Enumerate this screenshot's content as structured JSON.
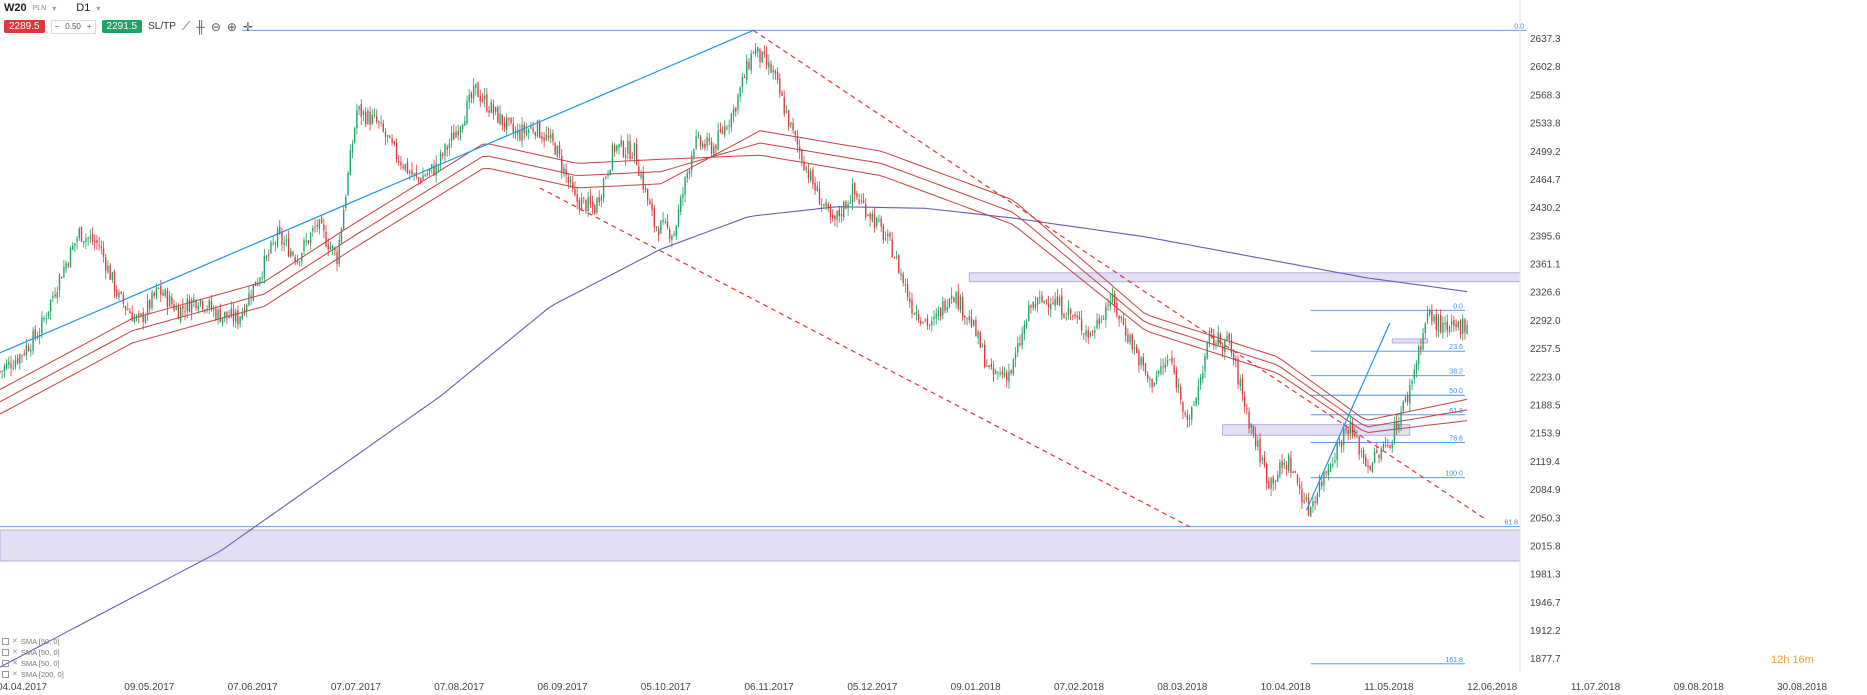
{
  "toolbar": {
    "symbol": "W20",
    "currency": "PLN",
    "timeframe": "D1",
    "sell_price": "2289.5",
    "lot": "0.50",
    "buy_price": "2291.5",
    "sltp_label": "SL/TP",
    "icons": [
      "line-chart-icon",
      "candles-icon",
      "zoom-out-icon",
      "zoom-in-icon",
      "crosshair-icon"
    ]
  },
  "legend": [
    "SMA [50, 0]",
    "SMA [50, 0]",
    "SMA [50, 0]",
    "SMA [200, 0]"
  ],
  "timer": {
    "hours": "12h",
    "minutes": "16m"
  },
  "colors": {
    "up": "#1aa466",
    "down": "#e0373d",
    "sma": "#c84040",
    "sma200": "#6a5cae",
    "trend": "#2196e8",
    "fib": "#3d8fe0",
    "zone": "#d6d0ee"
  },
  "chart_data": {
    "type": "candlestick",
    "timeframe": "D1",
    "xlabels": [
      "04.04.2017",
      "09.05.2017",
      "07.06.2017",
      "07.07.2017",
      "07.08.2017",
      "06.09.2017",
      "05.10.2017",
      "06.11.2017",
      "05.12.2017",
      "09.01.2018",
      "07.02.2018",
      "08.03.2018",
      "10.04.2018",
      "11.05.2018",
      "12.06.2018",
      "11.07.2018",
      "09.08.2018",
      "30.08.2018"
    ],
    "yticks": [
      "2637.3",
      "2602.8",
      "2568.3",
      "2533.8",
      "2499.2",
      "2464.7",
      "2430.2",
      "2395.6",
      "2361.1",
      "2326.6",
      "2292.0",
      "2257.5",
      "2223.0",
      "2188.5",
      "2153.9",
      "2119.4",
      "2084.9",
      "2050.3",
      "2015.8",
      "1981.3",
      "1946.7",
      "1912.2",
      "1877.7"
    ],
    "ylim": [
      1862,
      2668
    ],
    "close_path": [
      [
        0,
        2230
      ],
      [
        9,
        2250
      ],
      [
        18,
        2280
      ],
      [
        27,
        2345
      ],
      [
        36,
        2400
      ],
      [
        45,
        2385
      ],
      [
        54,
        2320
      ],
      [
        63,
        2290
      ],
      [
        72,
        2330
      ],
      [
        81,
        2305
      ],
      [
        90,
        2320
      ],
      [
        99,
        2300
      ],
      [
        108,
        2295
      ],
      [
        117,
        2345
      ],
      [
        126,
        2395
      ],
      [
        135,
        2370
      ],
      [
        144,
        2410
      ],
      [
        153,
        2370
      ],
      [
        162,
        2550
      ],
      [
        171,
        2535
      ],
      [
        180,
        2495
      ],
      [
        189,
        2465
      ],
      [
        198,
        2480
      ],
      [
        207,
        2525
      ],
      [
        216,
        2575
      ],
      [
        225,
        2545
      ],
      [
        234,
        2520
      ],
      [
        243,
        2530
      ],
      [
        252,
        2505
      ],
      [
        261,
        2440
      ],
      [
        270,
        2430
      ],
      [
        279,
        2505
      ],
      [
        288,
        2500
      ],
      [
        297,
        2410
      ],
      [
        306,
        2400
      ],
      [
        315,
        2510
      ],
      [
        324,
        2505
      ],
      [
        333,
        2550
      ],
      [
        342,
        2625
      ],
      [
        351,
        2595
      ],
      [
        360,
        2520
      ],
      [
        369,
        2460
      ],
      [
        378,
        2410
      ],
      [
        387,
        2450
      ],
      [
        396,
        2420
      ],
      [
        405,
        2380
      ],
      [
        414,
        2310
      ],
      [
        423,
        2285
      ],
      [
        432,
        2330
      ],
      [
        441,
        2290
      ],
      [
        450,
        2225
      ],
      [
        459,
        2230
      ],
      [
        468,
        2310
      ],
      [
        477,
        2320
      ],
      [
        486,
        2300
      ],
      [
        495,
        2275
      ],
      [
        504,
        2320
      ],
      [
        513,
        2270
      ],
      [
        522,
        2215
      ],
      [
        531,
        2245
      ],
      [
        540,
        2165
      ],
      [
        549,
        2270
      ],
      [
        558,
        2265
      ],
      [
        567,
        2170
      ],
      [
        576,
        2095
      ],
      [
        585,
        2120
      ],
      [
        594,
        2060
      ],
      [
        603,
        2115
      ],
      [
        612,
        2165
      ],
      [
        621,
        2115
      ],
      [
        630,
        2140
      ],
      [
        639,
        2200
      ],
      [
        648,
        2300
      ],
      [
        657,
        2278
      ],
      [
        666,
        2290
      ]
    ],
    "sma_bands": [
      [
        [
          0,
          2178
        ],
        [
          60,
          2265
        ],
        [
          120,
          2310
        ],
        [
          160,
          2380
        ],
        [
          220,
          2480
        ],
        [
          262,
          2455
        ],
        [
          300,
          2460
        ],
        [
          345,
          2525
        ],
        [
          400,
          2500
        ],
        [
          460,
          2440
        ],
        [
          520,
          2300
        ],
        [
          580,
          2248
        ],
        [
          620,
          2170
        ],
        [
          666,
          2196
        ]
      ],
      [
        [
          0,
          2193
        ],
        [
          60,
          2280
        ],
        [
          120,
          2325
        ],
        [
          160,
          2395
        ],
        [
          220,
          2495
        ],
        [
          262,
          2470
        ],
        [
          300,
          2475
        ],
        [
          345,
          2510
        ],
        [
          400,
          2485
        ],
        [
          460,
          2425
        ],
        [
          520,
          2290
        ],
        [
          580,
          2238
        ],
        [
          620,
          2162
        ],
        [
          666,
          2183
        ]
      ],
      [
        [
          0,
          2208
        ],
        [
          60,
          2295
        ],
        [
          120,
          2340
        ],
        [
          160,
          2410
        ],
        [
          220,
          2510
        ],
        [
          262,
          2485
        ],
        [
          300,
          2490
        ],
        [
          345,
          2495
        ],
        [
          400,
          2470
        ],
        [
          460,
          2410
        ],
        [
          520,
          2280
        ],
        [
          580,
          2228
        ],
        [
          620,
          2155
        ],
        [
          666,
          2170
        ]
      ]
    ],
    "sma200": [
      [
        0,
        1868
      ],
      [
        100,
        2010
      ],
      [
        200,
        2200
      ],
      [
        250,
        2310
      ],
      [
        300,
        2380
      ],
      [
        340,
        2420
      ],
      [
        380,
        2432
      ],
      [
        420,
        2430
      ],
      [
        460,
        2418
      ],
      [
        520,
        2395
      ],
      [
        580,
        2365
      ],
      [
        620,
        2345
      ],
      [
        666,
        2328
      ]
    ],
    "trendlines": [
      {
        "style": "solid",
        "points": [
          [
            0,
            2253
          ],
          [
            342,
            2648
          ]
        ]
      },
      {
        "style": "dashed",
        "points": [
          [
            342,
            2648
          ],
          [
            675,
            2048
          ]
        ]
      },
      {
        "style": "dashed",
        "points": [
          [
            245,
            2455
          ],
          [
            540,
            2040
          ]
        ]
      },
      {
        "style": "solid",
        "points": [
          [
            593,
            2060
          ],
          [
            631,
            2290
          ]
        ]
      }
    ],
    "zones": [
      {
        "y_top": 2351,
        "y_bottom": 2340,
        "x_start": 440
      },
      {
        "y_top": 2036,
        "y_bottom": 1998,
        "x_start": 0
      },
      {
        "y_top": 2165,
        "y_bottom": 2152,
        "x_start": 555,
        "x_end": 640
      },
      {
        "y_top": 2270,
        "y_bottom": 2265,
        "x_start": 632,
        "x_end": 648
      }
    ],
    "fibonacci": [
      {
        "label": "0.0",
        "y": 2648,
        "x_start": 110
      },
      {
        "label": "0.0",
        "y": 2305,
        "x_start": 595
      },
      {
        "label": "23.6",
        "y": 2255,
        "x_start": 595
      },
      {
        "label": "38.2",
        "y": 2225,
        "x_start": 595
      },
      {
        "label": "50.0",
        "y": 2201,
        "x_start": 595
      },
      {
        "label": "61.8",
        "y": 2177,
        "x_start": 595
      },
      {
        "label": "78.6",
        "y": 2143,
        "x_start": 595
      },
      {
        "label": "100.0",
        "y": 2100,
        "x_start": 595
      },
      {
        "label": "61.8",
        "y": 2040,
        "x_start": 0
      },
      {
        "label": "161.8",
        "y": 1872,
        "x_start": 595
      }
    ]
  }
}
